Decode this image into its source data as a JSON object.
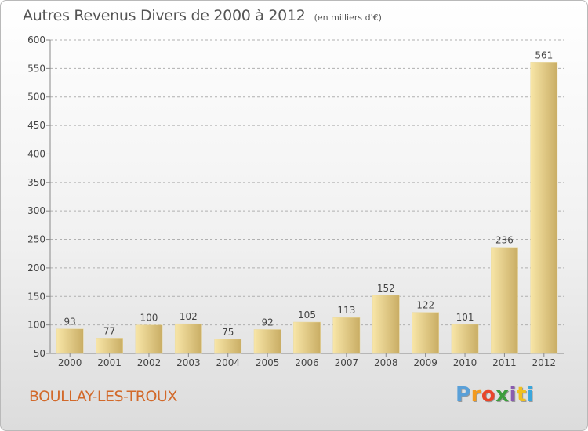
{
  "title": "Autres Revenus Divers de 2000 à 2012",
  "subtitle": "(en milliers d'€)",
  "commune": "BOULLAY-LES-TROUX",
  "logo": {
    "letters": [
      "P",
      "r",
      "o",
      "x",
      "i",
      "t",
      "i"
    ],
    "colors": [
      "#5aa0d8",
      "#f39a1e",
      "#e8462a",
      "#3e9e3e",
      "#8a5bb0",
      "#f0c020",
      "#3aa6dc"
    ]
  },
  "colors": {
    "bar_light": "#f8e6a8",
    "bar_dark": "#c9ad64",
    "axis": "#888888",
    "grid": "#b0b0b0",
    "commune": "#d2692a"
  },
  "chart_data": {
    "type": "bar",
    "categories": [
      "2000",
      "2001",
      "2002",
      "2003",
      "2004",
      "2005",
      "2006",
      "2007",
      "2008",
      "2009",
      "2010",
      "2011",
      "2012"
    ],
    "values": [
      93,
      77,
      100,
      102,
      75,
      92,
      105,
      113,
      152,
      122,
      101,
      236,
      561
    ],
    "ylim": [
      50,
      600
    ],
    "yticks": [
      50,
      100,
      150,
      200,
      250,
      300,
      350,
      400,
      450,
      500,
      550,
      600
    ],
    "grid": "dashed-horizontal",
    "data_labels": true
  }
}
